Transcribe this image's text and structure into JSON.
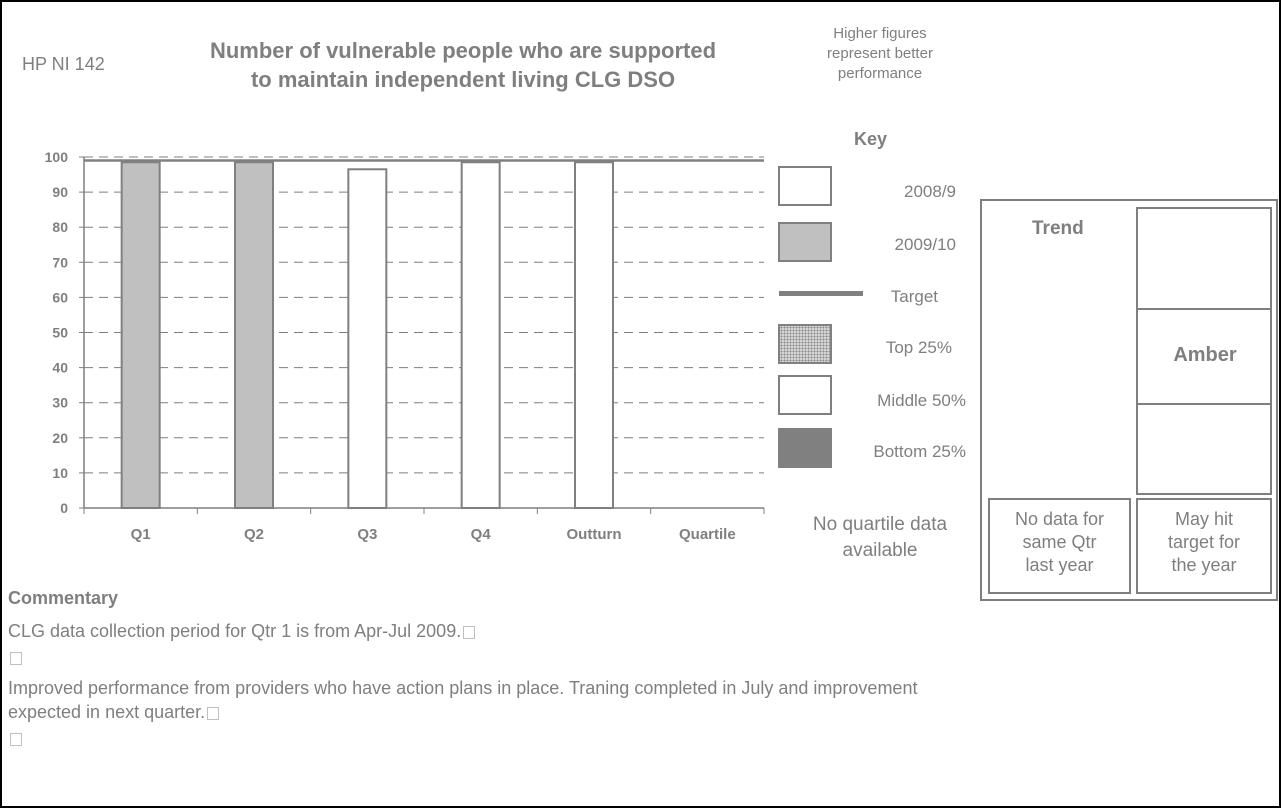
{
  "header": {
    "code": "HP NI 142",
    "title_line1": "Number of vulnerable people who are supported",
    "title_line2": "to maintain independent living CLG DSO",
    "note_line1": "Higher figures",
    "note_line2": "represent better",
    "note_line3": "performance"
  },
  "key": {
    "title": "Key",
    "items": [
      {
        "label": "2008/9"
      },
      {
        "label": "2009/10"
      },
      {
        "label": "Target"
      },
      {
        "label": "Top 25%"
      },
      {
        "label": "Middle 50%"
      },
      {
        "label": "Bottom 25%"
      }
    ]
  },
  "chart_data": {
    "type": "bar",
    "categories": [
      "Q1",
      "Q2",
      "Q3",
      "Q4",
      "Outturn",
      "Quartile"
    ],
    "ylim": [
      0,
      100
    ],
    "yticks": [
      0,
      10,
      20,
      30,
      40,
      50,
      60,
      70,
      80,
      90,
      100
    ],
    "grid": true,
    "target": 99,
    "bars": [
      {
        "category": "Q1",
        "value": 98.5,
        "series": "2009/10"
      },
      {
        "category": "Q2",
        "value": 98.5,
        "series": "2009/10"
      },
      {
        "category": "Q3",
        "value": 96.5,
        "series": "2008/9"
      },
      {
        "category": "Q4",
        "value": 98.5,
        "series": "2008/9"
      },
      {
        "category": "Outturn",
        "value": 98.5,
        "series": "2008/9"
      }
    ],
    "colors": {
      "2008/9": "#ffffff",
      "2009/10": "#c0c0c0",
      "target": "#808080",
      "bar_border": "#808080"
    }
  },
  "quartile_note": {
    "line1": "No quartile data",
    "line2": "available"
  },
  "trend": {
    "label": "Trend",
    "rag_status": "Amber",
    "left_bottom": [
      "No data for",
      "same Qtr",
      "last year"
    ],
    "right_bottom": [
      "May hit",
      "target for",
      "the year"
    ]
  },
  "commentary": {
    "heading": "Commentary",
    "line1": "CLG data collection period for Qtr 1 is from Apr-Jul 2009.",
    "line2": "Improved performance from providers who have action plans in place.  Traning completed in July and improvement",
    "line3": "expected in next quarter."
  }
}
